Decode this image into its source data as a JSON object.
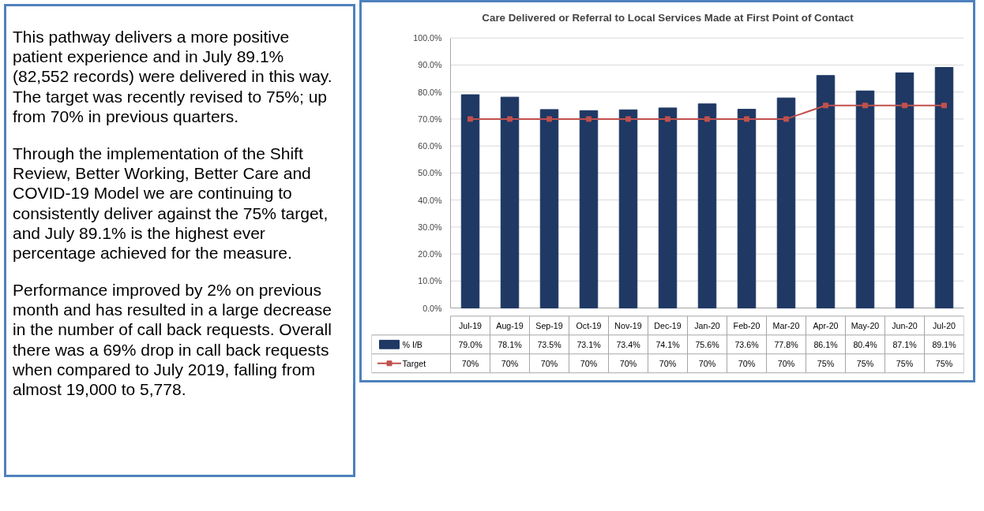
{
  "chart_data": {
    "type": "bar",
    "title": "Care Delivered or Referral to Local Services Made at First Point of Contact",
    "categories": [
      "Jul-19",
      "Aug-19",
      "Sep-19",
      "Oct-19",
      "Nov-19",
      "Dec-19",
      "Jan-20",
      "Feb-20",
      "Mar-20",
      "Apr-20",
      "May-20",
      "Jun-20",
      "Jul-20"
    ],
    "series": [
      {
        "name": "% I/B",
        "color": "#1f3864",
        "values": [
          79.0,
          78.1,
          73.5,
          73.1,
          73.4,
          74.1,
          75.6,
          73.6,
          77.8,
          86.1,
          80.4,
          87.1,
          89.1
        ],
        "value_labels": [
          "79.0%",
          "78.1%",
          "73.5%",
          "73.1%",
          "73.4%",
          "74.1%",
          "75.6%",
          "73.6%",
          "77.8%",
          "86.1%",
          "80.4%",
          "87.1%",
          "89.1%"
        ]
      },
      {
        "name": "Target",
        "type": "line",
        "color": "#c0504d",
        "values": [
          70,
          70,
          70,
          70,
          70,
          70,
          70,
          70,
          70,
          75,
          75,
          75,
          75
        ],
        "value_labels": [
          "70%",
          "70%",
          "70%",
          "70%",
          "70%",
          "70%",
          "70%",
          "70%",
          "70%",
          "75%",
          "75%",
          "75%",
          "75%"
        ]
      }
    ],
    "marker": "square",
    "ylim": [
      0,
      100
    ],
    "yticks": [
      {
        "value": 0,
        "label": "0.0%"
      },
      {
        "value": 10,
        "label": "10.0%"
      },
      {
        "value": 20,
        "label": "20.0%"
      },
      {
        "value": 30,
        "label": "30.0%"
      },
      {
        "value": 40,
        "label": "40.0%"
      },
      {
        "value": 50,
        "label": "50.0%"
      },
      {
        "value": 60,
        "label": "60.0%"
      },
      {
        "value": 70,
        "label": "70.0%"
      },
      {
        "value": 80,
        "label": "80.0%"
      },
      {
        "value": 90,
        "label": "90.0%"
      },
      {
        "value": 100,
        "label": "100.0%"
      }
    ],
    "grid": "y",
    "legend": "bottom",
    "annotations": [
      "This pathway delivers a more positive patient experience and in July 89.1% (82,552 records) were delivered in this way. The target was recently revised to 75%; up from 70% in previous quarters.",
      "Through the implementation of the Shift Review, Better Working, Better Care and COVID-19 Model we are continuing to consistently deliver against the 75% target, and July 89.1% is the highest ever percentage achieved for the measure.",
      "Performance improved by 2% on previous month and has resulted in a large decrease in the number of call back requests. Overall there was a 69% drop in call back requests when compared to July 2019, falling from almost 19,000 to 5,778."
    ]
  }
}
